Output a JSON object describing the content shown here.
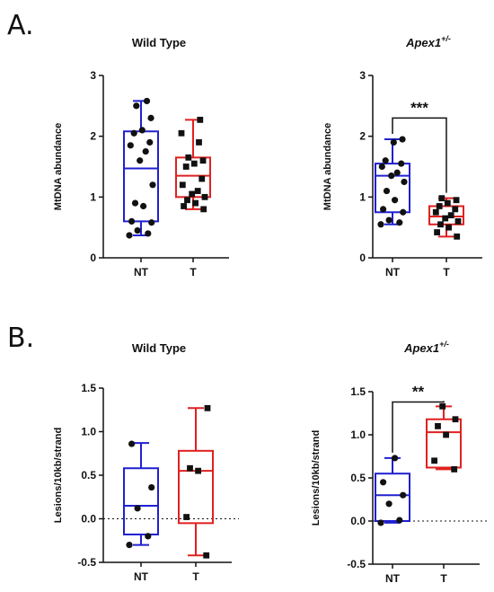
{
  "panel_labels": [
    "A.",
    "B."
  ],
  "colors": {
    "NT": "#2020d0",
    "T": "#e02020",
    "axis": "#111111",
    "point": "#111111"
  },
  "chart_data": [
    {
      "id": "A-wt",
      "type": "box",
      "title": "Wild Type",
      "title_sup": "",
      "ylabel": "MtDNA abundance",
      "ylim": [
        0,
        3
      ],
      "yticks": [
        0,
        1,
        2,
        3
      ],
      "ytick_labels": [
        "0",
        "1",
        "2",
        "3"
      ],
      "categories": [
        "NT",
        "T"
      ],
      "groups": [
        {
          "name": "NT",
          "min": 0.37,
          "q1": 0.6,
          "median": 1.47,
          "q3": 2.08,
          "max": 2.58,
          "points": [
            0.37,
            0.4,
            0.45,
            0.58,
            0.6,
            0.85,
            0.9,
            1.2,
            1.6,
            1.75,
            1.85,
            1.9,
            2.05,
            2.1,
            2.3,
            2.5,
            2.58
          ]
        },
        {
          "name": "T",
          "min": 0.8,
          "q1": 1.0,
          "median": 1.35,
          "q3": 1.65,
          "max": 2.27,
          "points": [
            0.8,
            0.85,
            0.9,
            0.95,
            1.0,
            1.05,
            1.1,
            1.2,
            1.3,
            1.5,
            1.55,
            1.6,
            1.65,
            1.9,
            2.05,
            2.27
          ]
        }
      ],
      "zero_line": false,
      "significance": null
    },
    {
      "id": "A-apex",
      "type": "box",
      "title": "Apex1",
      "title_sup": "+/-",
      "ylabel": "MtDNA abundance",
      "ylim": [
        0,
        3
      ],
      "yticks": [
        0,
        1,
        2,
        3
      ],
      "ytick_labels": [
        "0",
        "1",
        "2",
        "3"
      ],
      "categories": [
        "NT",
        "T"
      ],
      "groups": [
        {
          "name": "NT",
          "min": 0.55,
          "q1": 0.75,
          "median": 1.35,
          "q3": 1.55,
          "max": 1.95,
          "points": [
            0.55,
            0.58,
            0.62,
            0.75,
            0.8,
            0.95,
            1.1,
            1.25,
            1.35,
            1.4,
            1.5,
            1.55,
            1.6,
            1.9,
            1.95
          ]
        },
        {
          "name": "T",
          "min": 0.35,
          "q1": 0.55,
          "median": 0.68,
          "q3": 0.85,
          "max": 0.98,
          "points": [
            0.35,
            0.42,
            0.5,
            0.55,
            0.6,
            0.65,
            0.7,
            0.75,
            0.8,
            0.85,
            0.9,
            0.95,
            0.98
          ]
        }
      ],
      "zero_line": false,
      "significance": {
        "label": "***",
        "y": 2.3
      }
    },
    {
      "id": "B-wt",
      "type": "box",
      "title": "Wild Type",
      "title_sup": "",
      "ylabel": "Lesions/10kb/strand",
      "ylim": [
        -0.5,
        1.5
      ],
      "yticks": [
        -0.5,
        0,
        0.5,
        1,
        1.5
      ],
      "ytick_labels": [
        "-0.5",
        "0.0",
        "0.5",
        "1.0",
        "1.5"
      ],
      "categories": [
        "NT",
        "T"
      ],
      "groups": [
        {
          "name": "NT",
          "min": -0.3,
          "q1": -0.18,
          "median": 0.15,
          "q3": 0.58,
          "max": 0.87,
          "points": [
            -0.3,
            -0.2,
            0.12,
            0.36,
            0.86
          ]
        },
        {
          "name": "T",
          "min": -0.42,
          "q1": -0.05,
          "median": 0.55,
          "q3": 0.78,
          "max": 1.27,
          "points": [
            -0.42,
            0.02,
            0.55,
            0.58,
            1.27
          ]
        }
      ],
      "zero_line": true,
      "significance": null
    },
    {
      "id": "B-apex",
      "type": "box",
      "title": "Apex1",
      "title_sup": "+/-",
      "ylabel": "Lesions/10kb/strand",
      "ylim": [
        -0.5,
        1.5
      ],
      "yticks": [
        -0.5,
        0,
        0.5,
        1,
        1.5
      ],
      "ytick_labels": [
        "-0.5",
        "0.0",
        "0.5",
        "1.0",
        "1.5"
      ],
      "categories": [
        "NT",
        "T"
      ],
      "groups": [
        {
          "name": "NT",
          "min": -0.02,
          "q1": 0.0,
          "median": 0.3,
          "q3": 0.55,
          "max": 0.73,
          "points": [
            -0.02,
            0.01,
            0.2,
            0.3,
            0.45,
            0.73
          ]
        },
        {
          "name": "T",
          "min": 0.6,
          "q1": 0.62,
          "median": 1.03,
          "q3": 1.18,
          "max": 1.33,
          "points": [
            0.6,
            0.7,
            1.0,
            1.1,
            1.18,
            1.33
          ]
        }
      ],
      "zero_line": true,
      "significance": {
        "label": "**",
        "y": 1.38
      }
    }
  ]
}
